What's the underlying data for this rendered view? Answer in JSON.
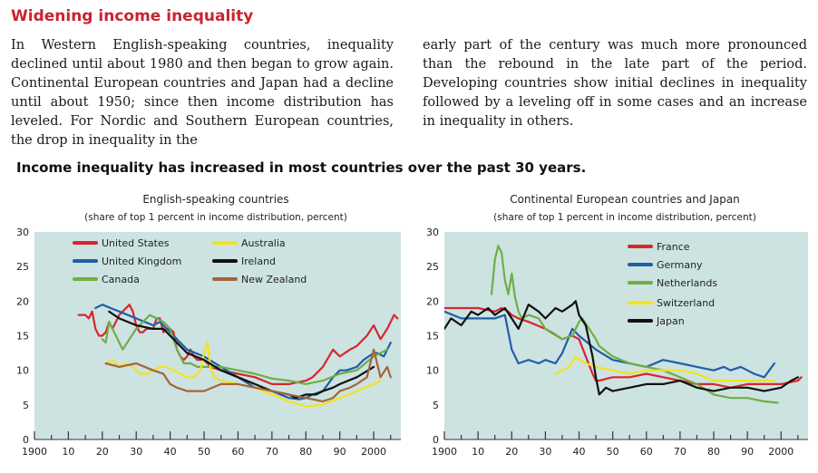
{
  "section_title": "Widening income inequality",
  "intro": {
    "left": "In Western English-speaking countries, inequality declined until about 1980 and then began to grow again. Continental European countries and Japan had a decline until about 1950; since then income distribution has leveled. For Nordic and Southern European countries, the drop in inequality in the",
    "right": "early part of the century was much more pronounced than the rebound in the late part of the period. Developing countries show initial declines in inequality followed by a leveling off in some cases and an increase in inequality in others."
  },
  "headline": "Income inequality has increased in most countries over the past 30 years.",
  "chart_data": [
    {
      "type": "line",
      "title": "English-speaking countries",
      "subtitle": "(share of top 1 percent in income distribution, percent)",
      "xlim": [
        1900,
        2008
      ],
      "ylim": [
        0,
        30
      ],
      "x_ticks": [
        1900,
        1910,
        1920,
        1930,
        1940,
        1950,
        1960,
        1970,
        1980,
        1990,
        2000
      ],
      "x_tick_labels": [
        "1900",
        "10",
        "20",
        "30",
        "40",
        "50",
        "60",
        "70",
        "80",
        "90",
        "2000"
      ],
      "y_ticks": [
        0,
        5,
        10,
        15,
        20,
        25,
        30
      ],
      "y_tick_labels": [
        "0",
        "5",
        "10",
        "15",
        "20",
        "25",
        "30"
      ],
      "legend_position": "top",
      "series": [
        {
          "name": "United States",
          "color": "#d7262e",
          "x": [
            1913,
            1915,
            1916,
            1917,
            1918,
            1919,
            1920,
            1921,
            1922,
            1923,
            1924,
            1925,
            1926,
            1927,
            1928,
            1929,
            1930,
            1931,
            1932,
            1933,
            1934,
            1935,
            1936,
            1937,
            1938,
            1939,
            1940,
            1941,
            1942,
            1943,
            1944,
            1945,
            1946,
            1947,
            1948,
            1950,
            1952,
            1955,
            1960,
            1965,
            1970,
            1975,
            1980,
            1982,
            1985,
            1988,
            1990,
            1993,
            1995,
            1998,
            2000,
            2002,
            2004,
            2005,
            2006,
            2007
          ],
          "y": [
            18,
            18,
            17.5,
            18.5,
            16,
            15,
            15,
            15.5,
            17,
            16,
            17,
            18,
            18.5,
            19,
            19.5,
            18.5,
            16.5,
            15.5,
            15.5,
            16,
            16,
            16,
            17.5,
            17.5,
            15.5,
            16,
            16,
            15.5,
            13,
            12,
            11.5,
            12,
            13,
            12,
            11.5,
            11.5,
            10.5,
            10,
            9.5,
            9,
            8,
            8,
            8.5,
            9,
            10.5,
            13,
            12,
            13,
            13.5,
            15,
            16.5,
            14.5,
            16,
            17,
            18,
            17.5
          ]
        },
        {
          "name": "United Kingdom",
          "color": "#1f5ea8",
          "x": [
            1918,
            1920,
            1925,
            1930,
            1935,
            1937,
            1938,
            1940,
            1945,
            1950,
            1955,
            1960,
            1965,
            1970,
            1975,
            1978,
            1980,
            1982,
            1985,
            1988,
            1990,
            1992,
            1995,
            1997,
            2000,
            2001,
            2003,
            2005
          ],
          "y": [
            19,
            19.5,
            18.5,
            17.5,
            16.5,
            17,
            16.5,
            15.5,
            13,
            12,
            10.5,
            9,
            7.5,
            7,
            6,
            5.8,
            6,
            6.5,
            7,
            9,
            10,
            10,
            10.5,
            11.5,
            12.5,
            12.5,
            12,
            14
          ]
        },
        {
          "name": "Canada",
          "color": "#6fae45",
          "x": [
            1920,
            1921,
            1922,
            1924,
            1926,
            1928,
            1930,
            1932,
            1934,
            1936,
            1938,
            1939,
            1940,
            1942,
            1944,
            1946,
            1948,
            1950,
            1955,
            1960,
            1965,
            1970,
            1975,
            1980,
            1985,
            1990,
            1995,
            2000,
            2004
          ],
          "y": [
            14.5,
            14,
            17,
            15,
            13,
            14.5,
            16,
            17,
            18,
            17.5,
            17,
            16.5,
            16,
            13,
            11,
            11,
            10.5,
            10.5,
            10.5,
            10,
            9.5,
            8.8,
            8.5,
            8,
            8.5,
            9.5,
            10,
            12,
            13
          ]
        },
        {
          "name": "Australia",
          "color": "#f2e31f",
          "x": [
            1921,
            1923,
            1925,
            1927,
            1929,
            1931,
            1933,
            1935,
            1937,
            1939,
            1941,
            1943,
            1945,
            1947,
            1949,
            1950,
            1951,
            1952,
            1953,
            1955,
            1960,
            1965,
            1970,
            1975,
            1980,
            1985,
            1990,
            1995,
            2000,
            2002
          ],
          "y": [
            11,
            11.5,
            10.5,
            11,
            10.5,
            9.5,
            9.5,
            10,
            10.5,
            10.5,
            10,
            9.5,
            9,
            9,
            10,
            12.5,
            14,
            10,
            9,
            8.5,
            8,
            7.5,
            6.5,
            5.5,
            4.8,
            5,
            6,
            7,
            8,
            8.5
          ]
        },
        {
          "name": "Ireland",
          "color": "#111111",
          "x": [
            1922,
            1925,
            1930,
            1935,
            1938,
            1942,
            1945,
            1950,
            1955,
            1960,
            1965,
            1970,
            1975,
            1977,
            1980,
            1983,
            1985,
            1988,
            1990,
            1995,
            2000
          ],
          "y": [
            18.5,
            17.5,
            16.5,
            16,
            16,
            14,
            12.5,
            11.5,
            10,
            9,
            8,
            7,
            6.5,
            6,
            6.5,
            6.5,
            7,
            7.5,
            8,
            9,
            10.5
          ]
        },
        {
          "name": "New Zealand",
          "color": "#a5643b",
          "x": [
            1921,
            1925,
            1930,
            1935,
            1938,
            1940,
            1942,
            1945,
            1950,
            1955,
            1960,
            1965,
            1970,
            1975,
            1980,
            1985,
            1988,
            1990,
            1993,
            1995,
            1998,
            2000,
            2002,
            2004,
            2005
          ],
          "y": [
            11,
            10.5,
            11,
            10,
            9.5,
            8,
            7.5,
            7,
            7,
            8,
            8,
            7.5,
            7,
            6.5,
            6,
            5.5,
            6,
            7,
            7.5,
            8,
            9,
            13,
            9,
            10.5,
            9
          ]
        }
      ]
    },
    {
      "type": "line",
      "title": "Continental European countries and Japan",
      "subtitle": "(share of top 1 percent in income distribution, percent)",
      "xlim": [
        1900,
        2008
      ],
      "ylim": [
        0,
        30
      ],
      "x_ticks": [
        1900,
        1910,
        1920,
        1930,
        1940,
        1950,
        1960,
        1970,
        1980,
        1990,
        2000
      ],
      "x_tick_labels": [
        "1900",
        "10",
        "20",
        "30",
        "40",
        "50",
        "60",
        "70",
        "80",
        "90",
        "2000"
      ],
      "y_ticks": [
        0,
        5,
        10,
        15,
        20,
        25,
        30
      ],
      "y_tick_labels": [
        "0",
        "5",
        "10",
        "15",
        "20",
        "25",
        "30"
      ],
      "legend_position": "top-right",
      "series": [
        {
          "name": "France",
          "color": "#d7262e",
          "x": [
            1900,
            1905,
            1910,
            1915,
            1917,
            1919,
            1920,
            1922,
            1925,
            1930,
            1935,
            1938,
            1940,
            1942,
            1944,
            1945,
            1946,
            1950,
            1955,
            1960,
            1965,
            1970,
            1975,
            1980,
            1985,
            1990,
            1995,
            2000,
            2005,
            2006
          ],
          "y": [
            19,
            19,
            19,
            18.5,
            19,
            18.5,
            18,
            17.5,
            17,
            16,
            14.5,
            15,
            14.5,
            12,
            9.5,
            8.5,
            8.5,
            9,
            9,
            9.5,
            9,
            8.5,
            8,
            8,
            7.5,
            8,
            8,
            8,
            8.5,
            9
          ]
        },
        {
          "name": "Germany",
          "color": "#1f5ea8",
          "x": [
            1900,
            1905,
            1910,
            1913,
            1915,
            1918,
            1920,
            1922,
            1925,
            1928,
            1930,
            1933,
            1935,
            1938,
            1940,
            1945,
            1950,
            1955,
            1960,
            1965,
            1970,
            1975,
            1980,
            1983,
            1985,
            1988,
            1990,
            1992,
            1995,
            1998
          ],
          "y": [
            18.5,
            17.5,
            17.5,
            17.5,
            17.5,
            18,
            13,
            11,
            11.5,
            11,
            11.5,
            11,
            12.5,
            16,
            15,
            13,
            11.5,
            11,
            10.5,
            11.5,
            11,
            10.5,
            10,
            10.5,
            10,
            10.5,
            10,
            9.5,
            9,
            11
          ]
        },
        {
          "name": "Netherlands",
          "color": "#6fae45",
          "x": [
            1914,
            1915,
            1916,
            1917,
            1918,
            1919,
            1920,
            1921,
            1922,
            1923,
            1925,
            1928,
            1930,
            1932,
            1935,
            1938,
            1940,
            1941,
            1943,
            1945,
            1946,
            1950,
            1955,
            1960,
            1965,
            1970,
            1975,
            1980,
            1985,
            1990,
            1995,
            1999
          ],
          "y": [
            21,
            26,
            28,
            27,
            23,
            21,
            24,
            20.5,
            18.5,
            17.5,
            18,
            17.5,
            16,
            15.5,
            14.5,
            15,
            17,
            17.5,
            16,
            14.5,
            13.5,
            12,
            11,
            10.5,
            10,
            9,
            8,
            6.5,
            6,
            6,
            5.5,
            5.3
          ]
        },
        {
          "name": "Switzerland",
          "color": "#f2e31f",
          "x": [
            1933,
            1935,
            1937,
            1939,
            1940,
            1942,
            1945,
            1950,
            1955,
            1960,
            1965,
            1970,
            1975,
            1980,
            1985,
            1990,
            1995,
            1998
          ],
          "y": [
            9.5,
            10,
            10.5,
            12,
            11.5,
            11,
            10.5,
            10,
            9.5,
            10,
            10,
            10,
            9.5,
            8.5,
            8.5,
            8.5,
            8.5,
            8.5
          ]
        },
        {
          "name": "Japan",
          "color": "#111111",
          "x": [
            1900,
            1902,
            1905,
            1908,
            1910,
            1913,
            1915,
            1918,
            1920,
            1922,
            1925,
            1928,
            1930,
            1933,
            1935,
            1938,
            1939,
            1940,
            1942,
            1944,
            1945,
            1946,
            1948,
            1950,
            1955,
            1960,
            1965,
            1970,
            1975,
            1980,
            1985,
            1990,
            1995,
            2000,
            2003,
            2005
          ],
          "y": [
            16,
            17.5,
            16.5,
            18.5,
            18,
            19,
            18,
            19,
            17.5,
            16,
            19.5,
            18.5,
            17.5,
            19,
            18.5,
            19.5,
            20,
            18,
            16.5,
            12,
            9,
            6.5,
            7.5,
            7,
            7.5,
            8,
            8,
            8.5,
            7.5,
            7,
            7.5,
            7.5,
            7,
            7.5,
            8.5,
            9
          ]
        }
      ]
    }
  ]
}
